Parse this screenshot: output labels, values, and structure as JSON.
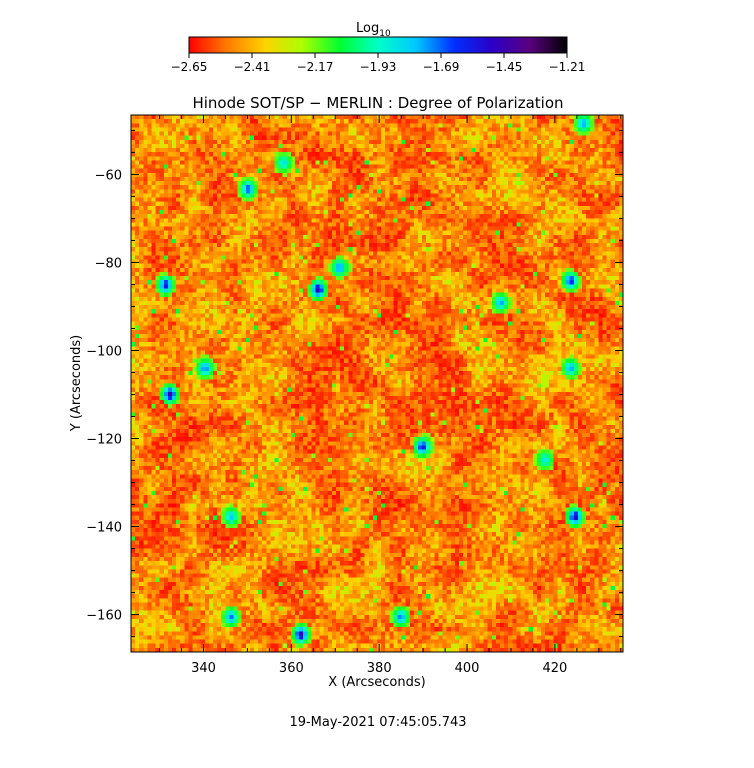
{
  "chart_data": {
    "type": "heatmap",
    "title": "Hinode SOT/SP − MERLIN : Degree of Polarization",
    "xlabel": "X (Arcseconds)",
    "ylabel": "Y (Arcseconds)",
    "xlim": [
      323.5,
      435.5
    ],
    "ylim": [
      -168.5,
      -46.5
    ],
    "xticks": [
      340,
      360,
      380,
      400,
      420
    ],
    "yticks": [
      -60,
      -80,
      -100,
      -120,
      -140,
      -160
    ],
    "colorbar": {
      "label_base": "Log",
      "label_sub": "10",
      "range": [
        -2.65,
        -1.21
      ],
      "ticks": [
        "−2.65",
        "−2.41",
        "−2.17",
        "−1.93",
        "−1.69",
        "−1.45",
        "−1.21"
      ],
      "colormap_stops": [
        "#ff0000",
        "#ff7a00",
        "#ffd200",
        "#aaff00",
        "#00ff30",
        "#00ffc8",
        "#00c8ff",
        "#0030ff",
        "#2a00c8",
        "#5a0080",
        "#000000"
      ]
    },
    "field_summary": {
      "background_range": [
        -2.65,
        -2.2
      ],
      "grid_cols": 120,
      "grid_rows": 130
    },
    "features": [
      {
        "x": 366,
        "y": -86,
        "value": -1.45
      },
      {
        "x": 332,
        "y": -110,
        "value": -1.45
      },
      {
        "x": 331,
        "y": -85,
        "value": -1.55
      },
      {
        "x": 425,
        "y": -138,
        "value": -1.5
      },
      {
        "x": 362,
        "y": -165,
        "value": -1.45
      },
      {
        "x": 390,
        "y": -122,
        "value": -1.55
      },
      {
        "x": 424,
        "y": -84,
        "value": -1.6
      },
      {
        "x": 340,
        "y": -104,
        "value": -1.7
      },
      {
        "x": 350,
        "y": -63,
        "value": -1.65
      },
      {
        "x": 371,
        "y": -81,
        "value": -1.7
      },
      {
        "x": 346,
        "y": -161,
        "value": -1.7
      },
      {
        "x": 385,
        "y": -161,
        "value": -1.7
      },
      {
        "x": 427,
        "y": -48,
        "value": -1.75
      },
      {
        "x": 408,
        "y": -89,
        "value": -1.75
      },
      {
        "x": 424,
        "y": -104,
        "value": -1.75
      },
      {
        "x": 346,
        "y": -138,
        "value": -1.8
      },
      {
        "x": 358,
        "y": -57,
        "value": -1.85
      },
      {
        "x": 418,
        "y": -125,
        "value": -1.85
      }
    ],
    "footer": "19-May-2021 07:45:05.743"
  }
}
